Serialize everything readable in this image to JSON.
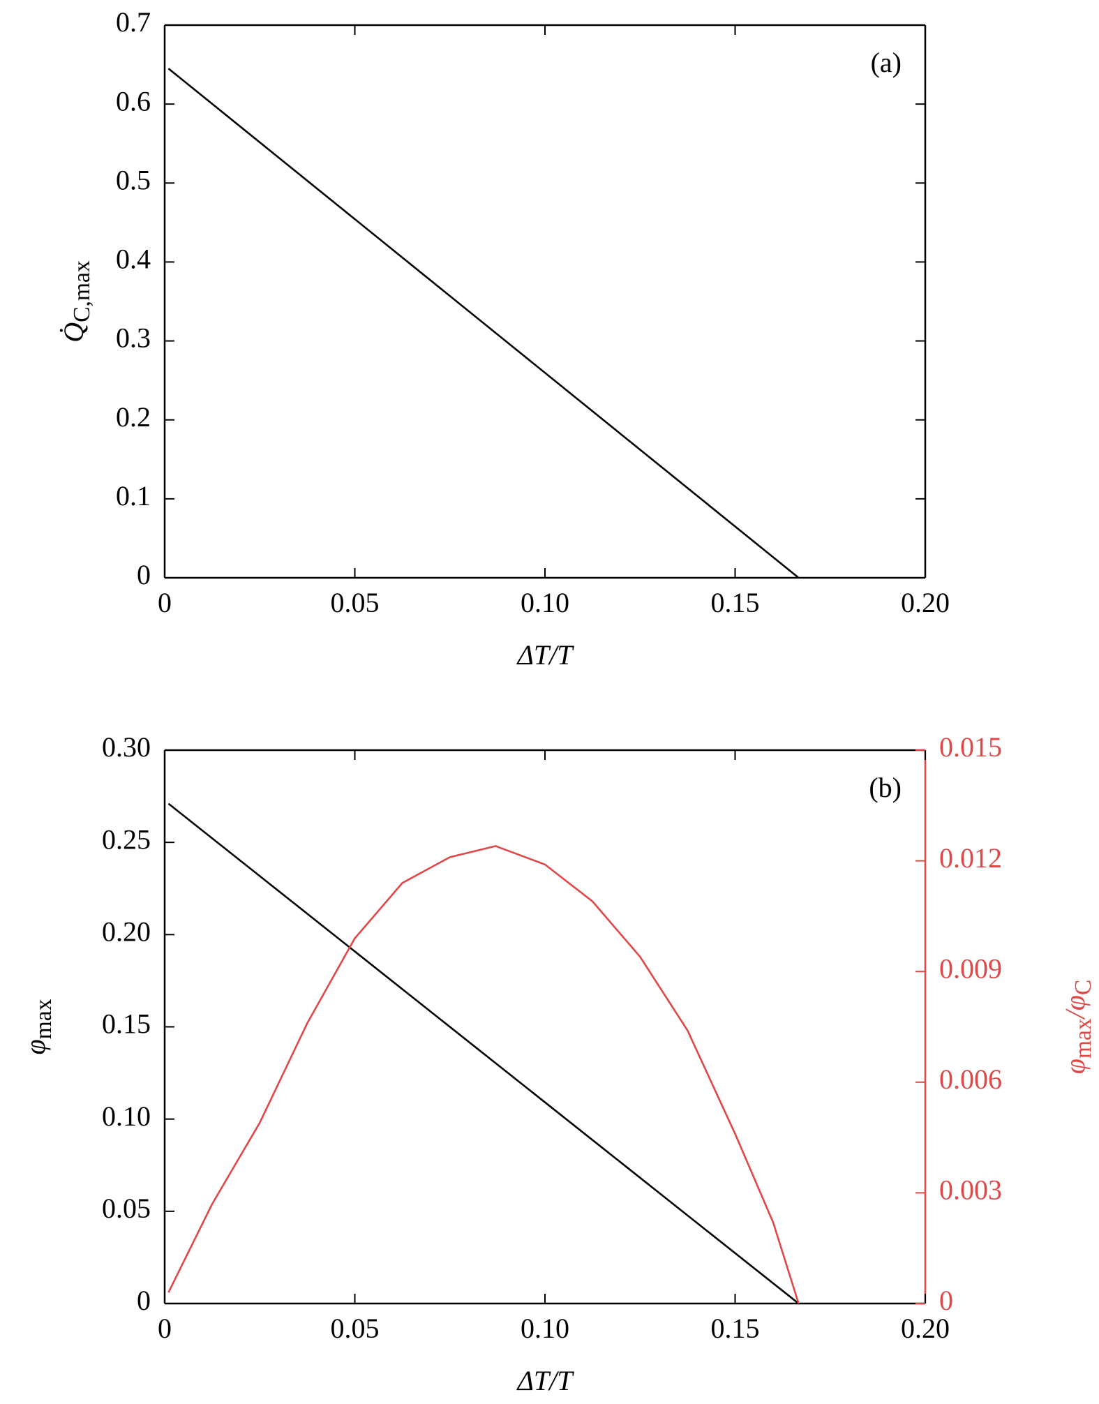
{
  "chart_data": [
    {
      "type": "line",
      "annotation": "(a)",
      "xlabel": [
        "ΔT/T"
      ],
      "ylabel": [
        "Q̇",
        "C,max"
      ],
      "xlim": [
        0,
        0.2
      ],
      "xticks": [
        0,
        0.05,
        {
          "value": 0.1,
          "label": "0.10"
        },
        0.15,
        {
          "value": 0.2,
          "label": "0.20"
        }
      ],
      "ylim": [
        0,
        0.7
      ],
      "yticks": [
        0,
        0.1,
        0.2,
        0.3,
        0.4,
        0.5,
        0.6,
        0.7
      ],
      "series": [
        {
          "color": "#000000",
          "x": [
            0.001,
            0.1667
          ],
          "values": [
            0.645,
            0
          ]
        }
      ]
    },
    {
      "type": "line",
      "annotation": "(b)",
      "xlabel": [
        "ΔT/T"
      ],
      "ylabel": [
        "φ",
        "max"
      ],
      "y2label": [
        "φ",
        "max",
        "/φ",
        "C"
      ],
      "y2color": "#e04848",
      "xlim": [
        0,
        0.2
      ],
      "xticks": [
        0,
        0.05,
        {
          "value": 0.1,
          "label": "0.10"
        },
        0.15,
        {
          "value": 0.2,
          "label": "0.20"
        }
      ],
      "ylim": [
        0,
        0.3
      ],
      "yticks": [
        0,
        0.05,
        {
          "value": 0.1,
          "label": "0.10"
        },
        0.15,
        {
          "value": 0.2,
          "label": "0.20"
        },
        0.25,
        {
          "value": 0.3,
          "label": "0.30"
        }
      ],
      "y2lim": [
        0,
        0.015
      ],
      "y2ticks": [
        0,
        0.003,
        0.006,
        0.009,
        0.012,
        0.015
      ],
      "series": [
        {
          "color": "#000000",
          "x": [
            0.001,
            0.1667
          ],
          "values": [
            0.271,
            0
          ]
        },
        {
          "color": "#e04848",
          "axis": "y2",
          "x": [
            0.001,
            0.0125,
            0.025,
            0.0375,
            0.05,
            0.0625,
            0.075,
            0.087,
            0.1,
            0.1125,
            0.125,
            0.1375,
            0.15,
            0.16,
            0.1667
          ],
          "values": [
            0.0003,
            0.0027,
            0.0049,
            0.0076,
            0.0099,
            0.0114,
            0.0121,
            0.0124,
            0.0119,
            0.0109,
            0.0094,
            0.0074,
            0.0046,
            0.0022,
            0
          ]
        }
      ]
    }
  ]
}
